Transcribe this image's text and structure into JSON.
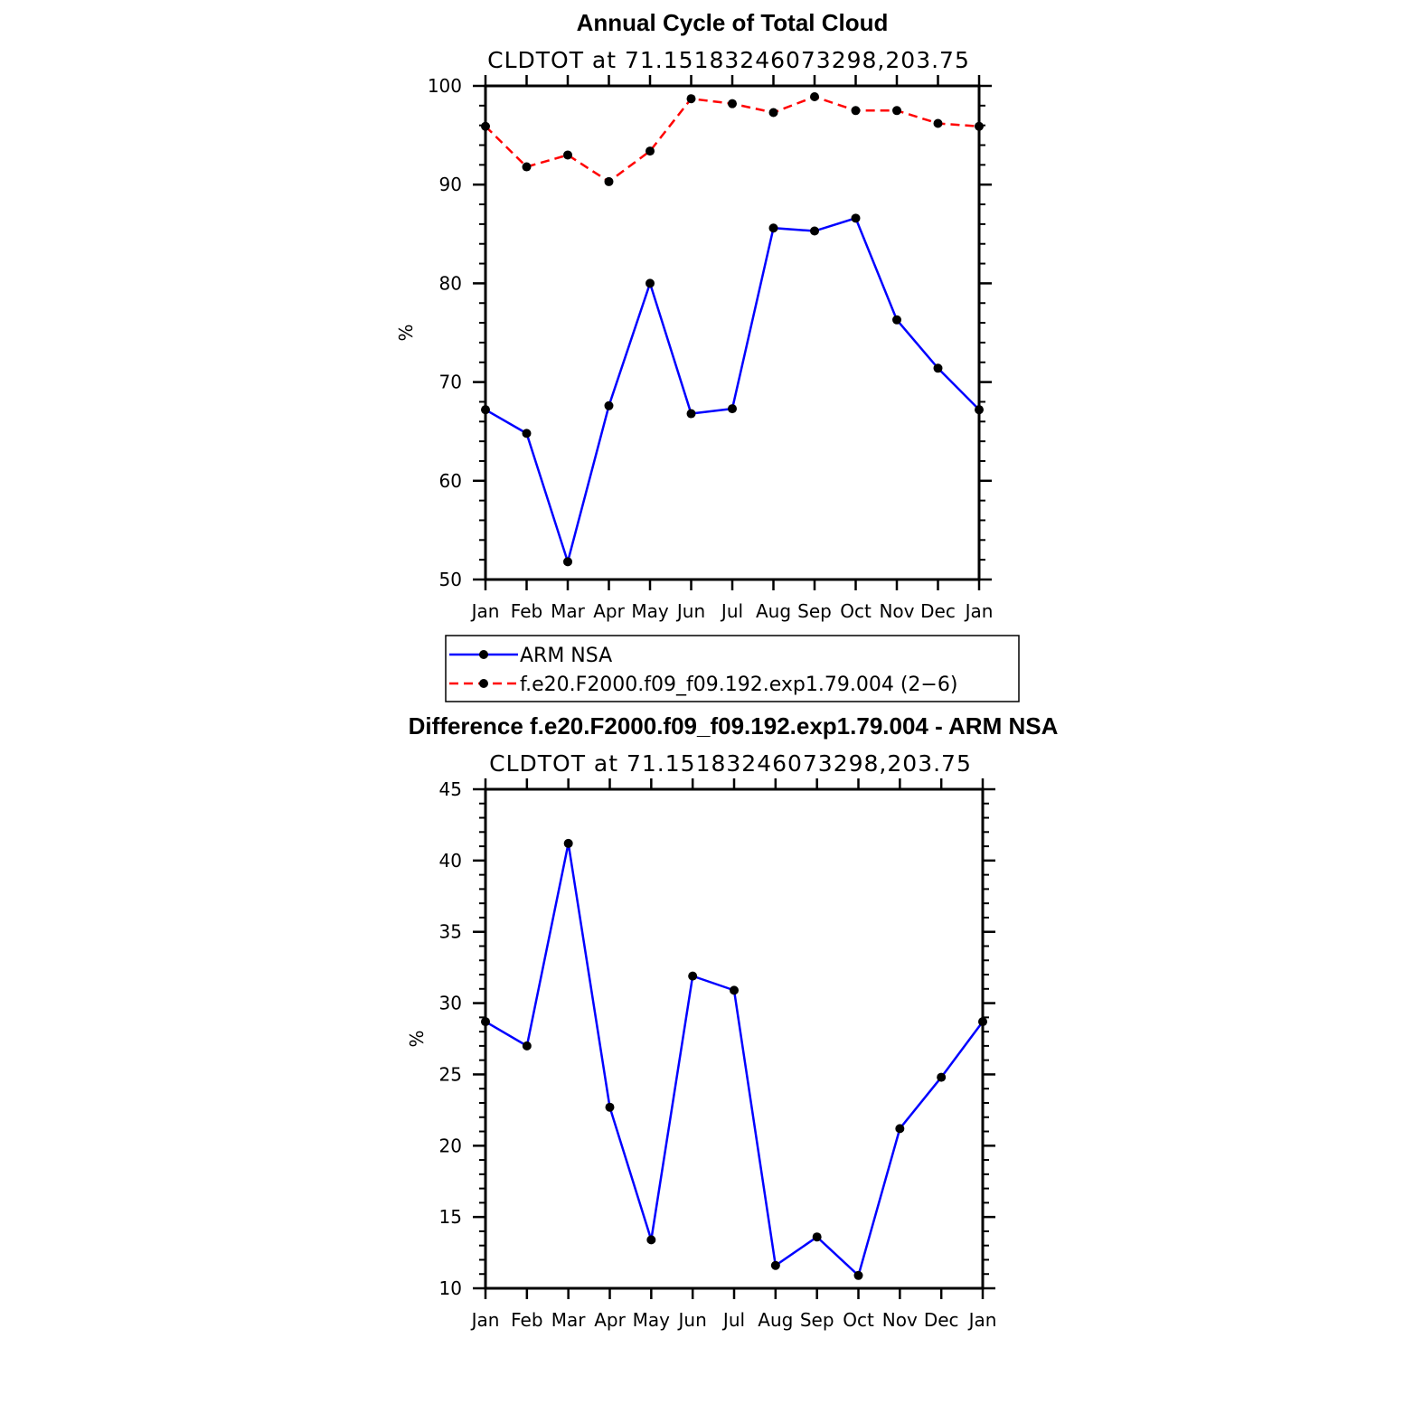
{
  "chart_data": [
    {
      "type": "line",
      "title": "Annual Cycle of Total Cloud",
      "subtitle": "CLDTOT at 71.15183246073298,203.75",
      "ylabel": "%",
      "xlabel": "",
      "categories": [
        "Jan",
        "Feb",
        "Mar",
        "Apr",
        "May",
        "Jun",
        "Jul",
        "Aug",
        "Sep",
        "Oct",
        "Nov",
        "Dec",
        "Jan"
      ],
      "ylim": [
        50,
        100
      ],
      "yticks": [
        "50",
        "60",
        "70",
        "80",
        "90",
        "100"
      ],
      "grid": false,
      "series": [
        {
          "name": "ARM NSA",
          "color": "#0000ff",
          "style": "solid",
          "marker": "dot",
          "values": [
            67.2,
            64.8,
            51.8,
            67.6,
            80.0,
            66.8,
            67.3,
            85.6,
            85.3,
            86.6,
            76.3,
            71.4,
            67.2
          ]
        },
        {
          "name": "f.e20.F2000.f09_f09.192.exp1.79.004 (2−6)",
          "color": "#ff0000",
          "style": "dashed",
          "marker": "dot",
          "values": [
            95.9,
            91.8,
            93.0,
            90.3,
            93.4,
            98.7,
            98.2,
            97.3,
            98.9,
            97.5,
            97.5,
            96.2,
            95.9
          ]
        }
      ]
    },
    {
      "type": "line",
      "title": "Difference f.e20.F2000.f09_f09.192.exp1.79.004 - ARM NSA",
      "subtitle": "CLDTOT at 71.15183246073298,203.75",
      "ylabel": "%",
      "xlabel": "",
      "categories": [
        "Jan",
        "Feb",
        "Mar",
        "Apr",
        "May",
        "Jun",
        "Jul",
        "Aug",
        "Sep",
        "Oct",
        "Nov",
        "Dec",
        "Jan"
      ],
      "ylim": [
        10,
        45
      ],
      "yticks": [
        "10",
        "15",
        "20",
        "25",
        "30",
        "35",
        "40",
        "45"
      ],
      "grid": false,
      "series": [
        {
          "color": "#0000ff",
          "style": "solid",
          "marker": "dot",
          "values": [
            28.7,
            27.0,
            41.2,
            22.7,
            13.4,
            31.9,
            30.9,
            11.6,
            13.6,
            10.9,
            21.2,
            24.8,
            28.7
          ]
        }
      ]
    }
  ]
}
